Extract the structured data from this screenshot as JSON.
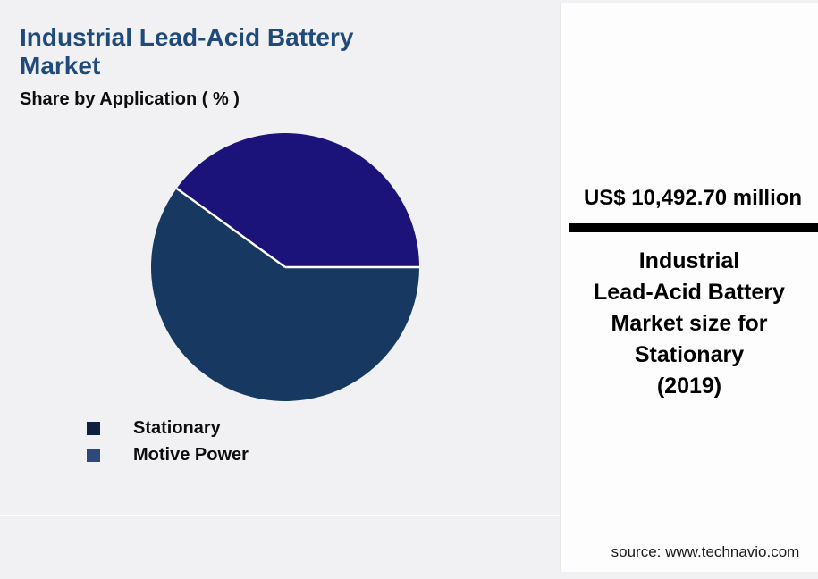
{
  "page": {
    "background_color": "#f1f1f4",
    "panel_background_color": "#fdfdfd"
  },
  "header": {
    "title": "Industrial Lead-Acid Battery Market",
    "title_color": "#204a79",
    "subtitle": "Share by Application ( % )"
  },
  "chart_data": {
    "type": "pie",
    "title": "Industrial Lead-Acid Battery Market",
    "subtitle": "Share by Application ( % )",
    "categories": [
      "Stationary",
      "Motive Power"
    ],
    "values": [
      40,
      60
    ],
    "unit": "%",
    "colors": [
      "#1b1379",
      "#173860"
    ],
    "start_angle_deg": 0,
    "direction": "counterclockwise",
    "slice_border_color": "#ffffff",
    "legend_position": "bottom-left"
  },
  "legend": {
    "items": [
      {
        "label": "Stationary",
        "color": "#0d203f"
      },
      {
        "label": "Motive Power",
        "color": "#2e4a7a"
      }
    ]
  },
  "panel": {
    "value": "US$ 10,492.70 million",
    "bar_color": "#000000",
    "description_lines": [
      "Industrial",
      "Lead-Acid Battery",
      "Market size for",
      "Stationary",
      "(2019)"
    ],
    "source": "source: www.technavio.com"
  }
}
